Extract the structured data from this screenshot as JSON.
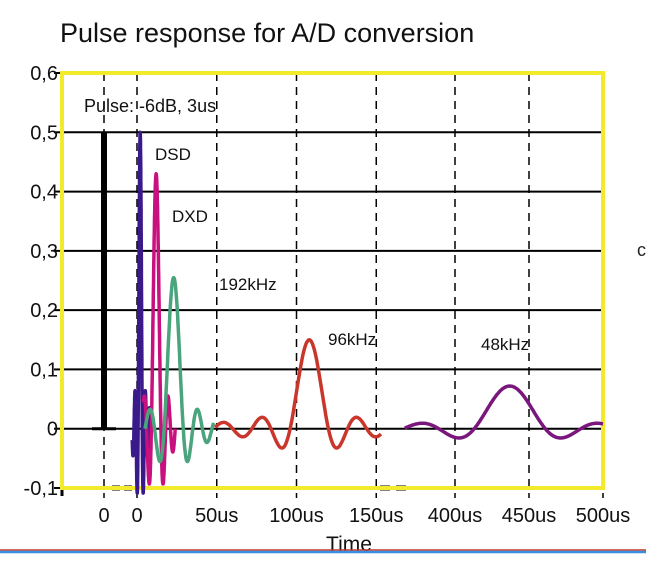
{
  "chart_data": {
    "type": "line",
    "title": "Pulse response for A/D conversion",
    "xlabel": "Time",
    "ylabel": "",
    "ylim": [
      -0.1,
      0.6
    ],
    "yticks": [
      -0.1,
      0,
      0.1,
      0.2,
      0.3,
      0.4,
      0.5,
      0.6
    ],
    "ytick_labels": [
      "-0,1",
      "0",
      "0,1",
      "0,2",
      "0,3",
      "0,4",
      "0,5",
      "0,6"
    ],
    "xticks": [
      {
        "label": "0",
        "t": "pulse"
      },
      {
        "label": "0",
        "t": 0
      },
      {
        "label": "50us",
        "t": 50
      },
      {
        "label": "100us",
        "t": 100
      },
      {
        "label": "150us",
        "t": 150
      },
      {
        "label": "400us",
        "t": 400
      },
      {
        "label": "450us",
        "t": 450
      },
      {
        "label": "500us",
        "t": 500
      }
    ],
    "x_axis_broken": true,
    "grid": "horizontal solid, vertical dashed",
    "annotation": "Pulse: -6dB, 3us",
    "series": [
      {
        "name": "Pulse",
        "color": "#000000",
        "model": "impulse",
        "peak": 0.5
      },
      {
        "name": "DSD",
        "color": "#3a1a8a",
        "model": "sinc",
        "peak": 0.5,
        "center_us": 2,
        "lobe_us": 1.3,
        "range_us": [
          -3,
          8
        ]
      },
      {
        "name": "DXD",
        "color": "#c8107f",
        "model": "sinc",
        "peak": 0.43,
        "center_us": 12,
        "lobe_us": 3,
        "range_us": [
          4,
          24
        ]
      },
      {
        "name": "192kHz",
        "color": "#4aa57e",
        "model": "sinc",
        "peak": 0.255,
        "center_us": 23,
        "lobe_us": 6,
        "range_us": [
          5,
          48
        ]
      },
      {
        "name": "96kHz",
        "color": "#c9372c",
        "model": "sinc",
        "peak": 0.15,
        "center_us": 108,
        "lobe_us": 12,
        "range_us": [
          49,
          153
        ]
      },
      {
        "name": "48kHz",
        "color": "#7a177d",
        "model": "sinc",
        "peak": 0.072,
        "center_us": 437,
        "lobe_us": 24,
        "range_us": [
          366,
          500
        ]
      }
    ],
    "frame_color": "#f2ea2a"
  },
  "stray_text": "c"
}
